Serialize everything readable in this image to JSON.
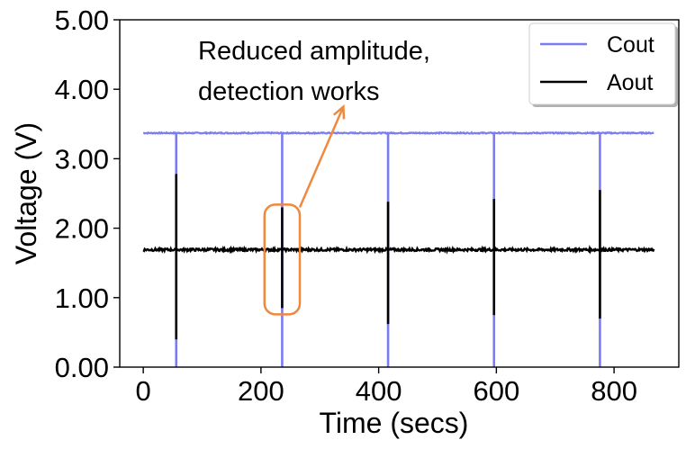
{
  "chart_data": {
    "type": "line",
    "title": "",
    "xlabel": "Time (secs)",
    "ylabel": "Voltage (V)",
    "xlim": [
      -40,
      910
    ],
    "ylim": [
      0,
      5
    ],
    "x_ticks": [
      0,
      200,
      400,
      600,
      800
    ],
    "y_ticks": [
      0,
      1,
      2,
      3,
      4,
      5
    ],
    "y_tick_labels": [
      "0.00",
      "1.00",
      "2.00",
      "3.00",
      "4.00",
      "5.00"
    ],
    "grid": false,
    "legend_position": "top-right",
    "x_range": [
      0,
      868
    ],
    "series": [
      {
        "name": "Cout",
        "color": "#7b7bf2",
        "baseline": 3.37,
        "pulses": [
          {
            "x": 56,
            "y_min": 0.0
          },
          {
            "x": 236,
            "y_min": 0.0
          },
          {
            "x": 416,
            "y_min": 0.0
          },
          {
            "x": 596,
            "y_min": 0.0
          },
          {
            "x": 776,
            "y_min": 0.0
          }
        ]
      },
      {
        "name": "Aout",
        "color": "#000000",
        "baseline": 1.69,
        "pulses": [
          {
            "x": 56,
            "y_max": 2.78,
            "y_min": 0.4
          },
          {
            "x": 236,
            "y_max": 2.3,
            "y_min": 0.85
          },
          {
            "x": 416,
            "y_max": 2.38,
            "y_min": 0.62
          },
          {
            "x": 596,
            "y_max": 2.42,
            "y_min": 0.75
          },
          {
            "x": 776,
            "y_max": 2.55,
            "y_min": 0.7
          }
        ]
      }
    ],
    "annotation": {
      "lines": [
        "Reduced amplitude,",
        "detection works"
      ],
      "color": "#f0883e",
      "highlight_box": {
        "x0": 206,
        "x1": 266,
        "y0": 0.76,
        "y1": 2.34
      },
      "arrow_from": {
        "x": 266,
        "y": 2.3
      },
      "arrow_to": {
        "x": 340,
        "y": 3.75
      }
    }
  }
}
